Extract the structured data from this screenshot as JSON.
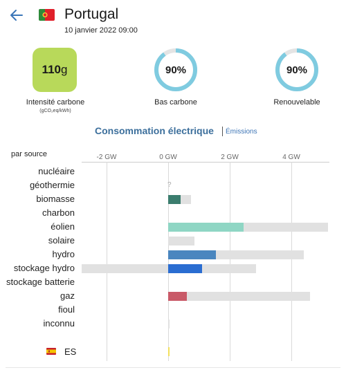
{
  "header": {
    "country": "Portugal",
    "datetime": "10 janvier 2022 09:00",
    "back_icon": "arrow-left-icon",
    "flag_icon": "portugal-flag-icon"
  },
  "metrics": {
    "intensity": {
      "value": "110",
      "unit": "g",
      "label": "Intensité carbone",
      "sublabel": "(gCO₂eq/kWh)",
      "color": "#b8d95a"
    },
    "low_carbon": {
      "value": "90%",
      "label": "Bas carbone",
      "fraction": 0.9
    },
    "renewable": {
      "value": "90%",
      "label": "Renouvelable",
      "fraction": 0.9
    },
    "ring_color": "#7fcbe0",
    "ring_track_color": "#e4e4e4"
  },
  "section": {
    "title": "Consommation électrique",
    "link": "Émissions"
  },
  "chart_data": {
    "type": "bar",
    "orientation": "horizontal",
    "group_label": "par source",
    "x_unit": "GW",
    "xlim": [
      -2.4,
      5.2
    ],
    "ticks": [
      {
        "value": -2,
        "label": "-2 GW"
      },
      {
        "value": 0,
        "label": "0 GW"
      },
      {
        "value": 2,
        "label": "2 GW"
      },
      {
        "value": 4,
        "label": "4 GW"
      }
    ],
    "rows": [
      {
        "name": "nucléaire",
        "value": 0,
        "capacity": 0,
        "color": null
      },
      {
        "name": "géothermie",
        "value": null,
        "capacity": 0,
        "color": null,
        "unknown": "?"
      },
      {
        "name": "biomasse",
        "value": 0.4,
        "capacity": 0.75,
        "color": "#3b7d6e"
      },
      {
        "name": "charbon",
        "value": 0,
        "capacity": 0,
        "color": null
      },
      {
        "name": "éolien",
        "value": 2.45,
        "capacity": 5.2,
        "color": "#8fd6c4"
      },
      {
        "name": "solaire",
        "value": 0,
        "capacity": 0.85,
        "color": "#f7d354"
      },
      {
        "name": "hydro",
        "value": 1.55,
        "capacity": 4.4,
        "color": "#4a86bf"
      },
      {
        "name": "stockage hydro",
        "value": 1.1,
        "capacity": 2.85,
        "capacity_negative": -2.8,
        "color": "#2a6dd1"
      },
      {
        "name": "stockage batterie",
        "value": 0,
        "capacity": 0,
        "color": null
      },
      {
        "name": "gaz",
        "value": 0.6,
        "capacity": 4.6,
        "color": "#c95a68"
      },
      {
        "name": "fioul",
        "value": 0,
        "capacity": 0,
        "color": null
      },
      {
        "name": "inconnu",
        "value": 0,
        "capacity": 0.05,
        "color": "#cfcfcf"
      }
    ],
    "exchanges": [
      {
        "name": "ES",
        "flag_icon": "spain-flag-icon",
        "value": 0.04,
        "color": "#f3e05c"
      }
    ]
  }
}
